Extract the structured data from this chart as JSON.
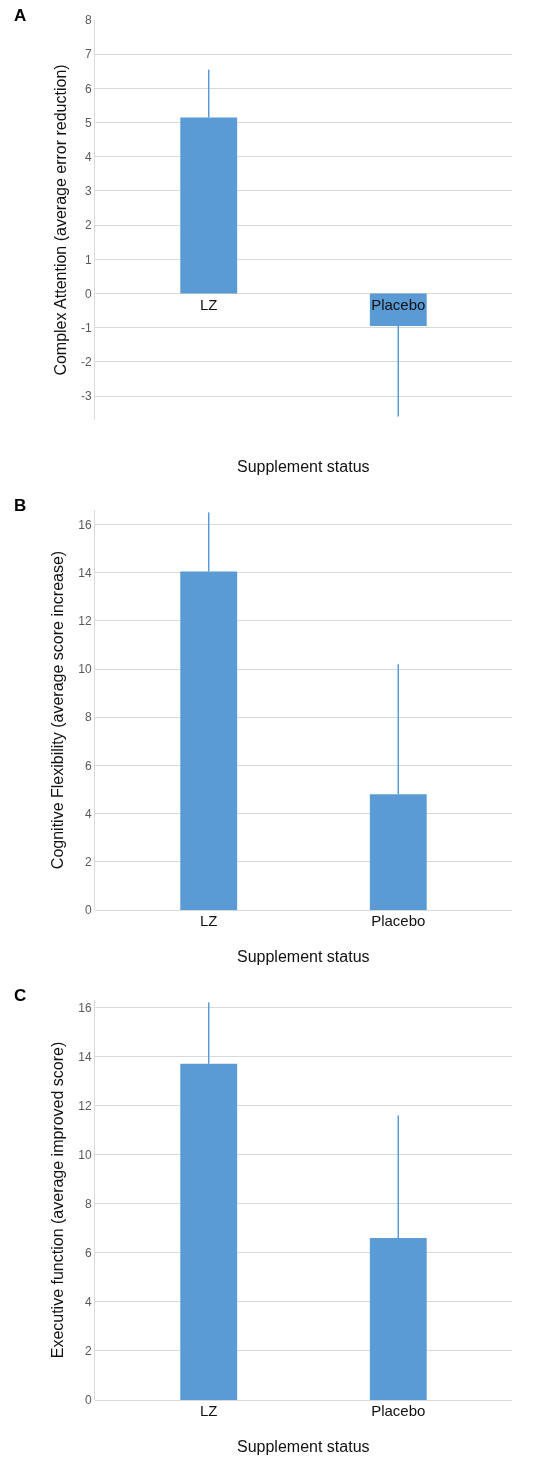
{
  "chart_data": [
    {
      "type": "bar",
      "annotations": [
        "A"
      ],
      "xlabel": "Supplement status",
      "ylabel": "Complex Attention (average error reduction)",
      "categories": [
        "LZ",
        "Placebo"
      ],
      "values": [
        5.15,
        -0.95
      ],
      "errors": [
        [
          5.15,
          6.55
        ],
        [
          -3.6,
          -0.95
        ]
      ],
      "color": "#5b9bd5",
      "ylim": [
        -3.7,
        8
      ],
      "yticks": [
        -3,
        -2,
        -1,
        0,
        1,
        2,
        3,
        4,
        5,
        6,
        7,
        8
      ],
      "grid": "y"
    },
    {
      "type": "bar",
      "annotations": [
        "B"
      ],
      "xlabel": "Supplement status",
      "ylabel": "Cognitive Flexibility (average score increase)",
      "categories": [
        "LZ",
        "Placebo"
      ],
      "values": [
        14.05,
        4.8
      ],
      "errors": [
        [
          14.05,
          16.5
        ],
        [
          4.8,
          10.2
        ]
      ],
      "color": "#5b9bd5",
      "ylim": [
        0,
        16.6
      ],
      "yticks": [
        0,
        2,
        4,
        6,
        8,
        10,
        12,
        14,
        16
      ],
      "grid": "y"
    },
    {
      "type": "bar",
      "annotations": [
        "C"
      ],
      "xlabel": "Supplement status",
      "ylabel": "Executive function (average improved score)",
      "categories": [
        "LZ",
        "Placebo"
      ],
      "values": [
        13.7,
        6.6
      ],
      "errors": [
        [
          13.7,
          16.2
        ],
        [
          6.6,
          11.6
        ]
      ],
      "color": "#5b9bd5",
      "ylim": [
        0,
        16.3
      ],
      "yticks": [
        0,
        2,
        4,
        6,
        8,
        10,
        12,
        14,
        16
      ],
      "grid": "y"
    }
  ]
}
